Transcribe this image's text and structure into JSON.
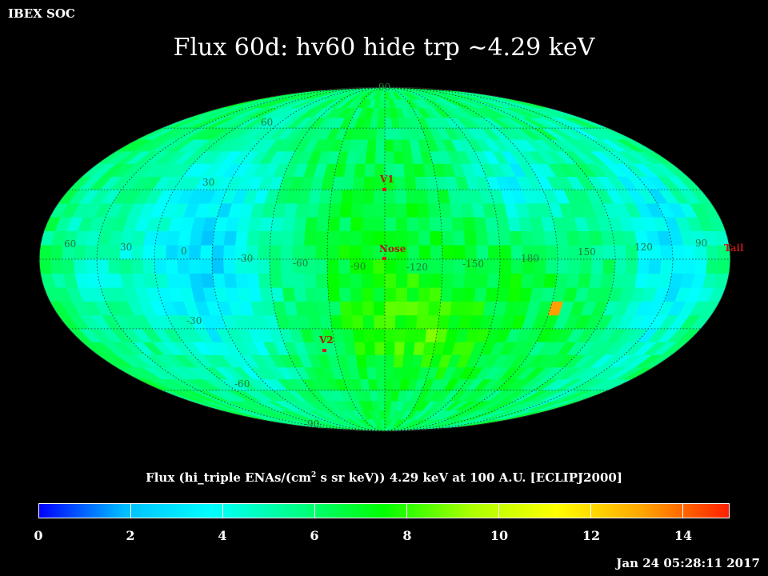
{
  "header": {
    "label": "IBEX SOC"
  },
  "title": "Flux   60d: hv60 hide trp ~4.29 keV",
  "map": {
    "projection": "mollweide",
    "lon_labels": [
      "60",
      "30",
      "0",
      "-30",
      "-60",
      "-90",
      "-120",
      "-150",
      "180",
      "150",
      "120",
      "90"
    ],
    "lat_labels": [
      "90",
      "60",
      "30",
      "-30",
      "-60",
      "-90"
    ],
    "markers": [
      {
        "name": "V1",
        "label": "V1"
      },
      {
        "name": "Nose",
        "label": "Nose"
      },
      {
        "name": "V2",
        "label": "V2"
      },
      {
        "name": "Tail",
        "label": "Tail"
      }
    ]
  },
  "colorbar": {
    "title_pre": "Flux (hi_triple ENAs/(cm",
    "title_sup": "2",
    "title_post": " s sr keV))  4.29 keV at 100 A.U. [ECLIPJ2000]",
    "min": 0,
    "max": 15,
    "tick_labels": [
      "0",
      "2",
      "4",
      "6",
      "8",
      "10",
      "12",
      "14"
    ],
    "colors": [
      "#0000ff",
      "#00bfff",
      "#00ffff",
      "#00ff88",
      "#00ff00",
      "#aaff00",
      "#ffff00",
      "#ffa500",
      "#ff2000"
    ]
  },
  "timestamp": "Jan 24 05:28:11 2017"
}
